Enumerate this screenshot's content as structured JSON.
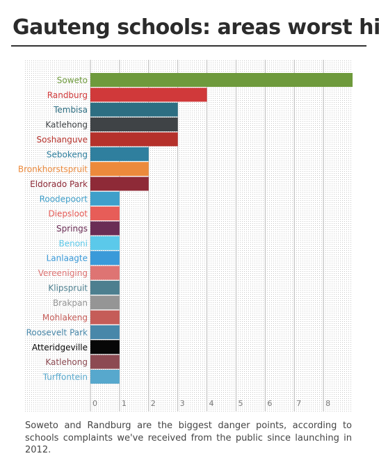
{
  "page": {
    "title": "Gauteng schools: areas worst hit",
    "caption": "Soweto and Randburg are the biggest danger points, according to schools complaints we've received from the public since launching in 2012."
  },
  "chart_data": {
    "type": "bar",
    "orientation": "horizontal",
    "title": "",
    "xlabel": "",
    "ylabel": "",
    "xlim": [
      0,
      9
    ],
    "x_ticks": [
      0,
      1,
      2,
      3,
      4,
      5,
      6,
      7,
      8
    ],
    "grid": true,
    "legend": "none",
    "categories": [
      "Soweto",
      "Randburg",
      "Tembisa",
      "Katlehong",
      "Soshanguve",
      "Sebokeng",
      "Bronkhorstspruit",
      "Eldorado Park",
      "Roodepoort",
      "Diepsloot",
      "Springs",
      "Benoni",
      "Lanlaagte",
      "Vereeniging",
      "Klipspruit",
      "Brakpan",
      "Mohlakeng",
      "Roosevelt Park",
      "Atteridgeville",
      "Katlehong",
      "Turffontein"
    ],
    "values": [
      9,
      4,
      3,
      3,
      3,
      2,
      2,
      2,
      1,
      1,
      1,
      1,
      1,
      1,
      1,
      1,
      1,
      1,
      1,
      1,
      1
    ],
    "colors": [
      "#6e9a3c",
      "#d0393a",
      "#2d6e82",
      "#3f4346",
      "#b5312b",
      "#2f7f9e",
      "#ec8a3c",
      "#8e2a37",
      "#3f9fca",
      "#e75d58",
      "#6a2d55",
      "#5bc9ea",
      "#3a9ad9",
      "#de7473",
      "#4d7f8f",
      "#959595",
      "#c55c58",
      "#4887a9",
      "#070707",
      "#8c4a52",
      "#57a8cd"
    ]
  }
}
